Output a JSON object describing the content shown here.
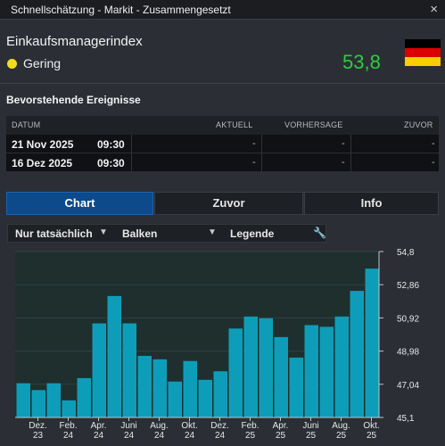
{
  "window": {
    "title": "Schnellschätzung - Markit - Zusammengesetzt",
    "close_glyph": "×"
  },
  "indicator": {
    "name": "Einkaufsmanagerindex",
    "impact": "Gering",
    "impact_color": "#f2dc1d",
    "value": "53,8",
    "value_color": "#2ecc40",
    "flag_colors": [
      "#000000",
      "#dd0000",
      "#ffcc00"
    ]
  },
  "events": {
    "title": "Bevorstehende Ereignisse",
    "columns": {
      "datum": "DATUM",
      "aktuell": "AKTUELL",
      "vorhersage": "VORHERSAGE",
      "zuvor": "ZUVOR"
    },
    "rows": [
      {
        "date": "21 Nov 2025",
        "time": "09:30",
        "aktuell": "-",
        "vorhersage": "-",
        "zuvor": "-"
      },
      {
        "date": "16 Dez 2025",
        "time": "09:30",
        "aktuell": "-",
        "vorhersage": "-",
        "zuvor": "-"
      }
    ]
  },
  "tabs": [
    {
      "label": "Chart",
      "active": true
    },
    {
      "label": "Zuvor",
      "active": false
    },
    {
      "label": "Info",
      "active": false
    }
  ],
  "toolbar": {
    "filter": "Nur tatsächlich",
    "filter_arrow": "▼",
    "type": "Balken",
    "type_arrow": "▼",
    "legend": "Legende",
    "wrench_glyph": "🔧"
  },
  "chart_data": {
    "type": "bar",
    "bar_color": "#0e9db8",
    "background": "#1f2f2e",
    "y_ticks": [
      "54,8",
      "52,86",
      "50,92",
      "48,98",
      "47,04",
      "45,1"
    ],
    "ylim": [
      45.1,
      54.8
    ],
    "x_ticks": [
      {
        "label": [
          "Dez.",
          "23"
        ],
        "index": 1
      },
      {
        "label": [
          "Feb.",
          "24"
        ],
        "index": 3
      },
      {
        "label": [
          "Apr.",
          "24"
        ],
        "index": 5
      },
      {
        "label": [
          "Juni",
          "24"
        ],
        "index": 7
      },
      {
        "label": [
          "Aug.",
          "24"
        ],
        "index": 9
      },
      {
        "label": [
          "Okt.",
          "24"
        ],
        "index": 11
      },
      {
        "label": [
          "Dez.",
          "24"
        ],
        "index": 13
      },
      {
        "label": [
          "Feb.",
          "25"
        ],
        "index": 15
      },
      {
        "label": [
          "Apr.",
          "25"
        ],
        "index": 17
      },
      {
        "label": [
          "Juni",
          "25"
        ],
        "index": 19
      },
      {
        "label": [
          "Aug.",
          "25"
        ],
        "index": 21
      },
      {
        "label": [
          "Okt.",
          "25"
        ],
        "index": 23
      }
    ],
    "values": [
      47.1,
      46.7,
      47.1,
      46.1,
      47.4,
      50.6,
      52.2,
      50.6,
      48.7,
      48.5,
      47.2,
      48.4,
      47.3,
      47.8,
      50.3,
      51.0,
      50.9,
      49.8,
      48.6,
      50.5,
      50.4,
      51.0,
      52.5,
      53.8
    ]
  }
}
